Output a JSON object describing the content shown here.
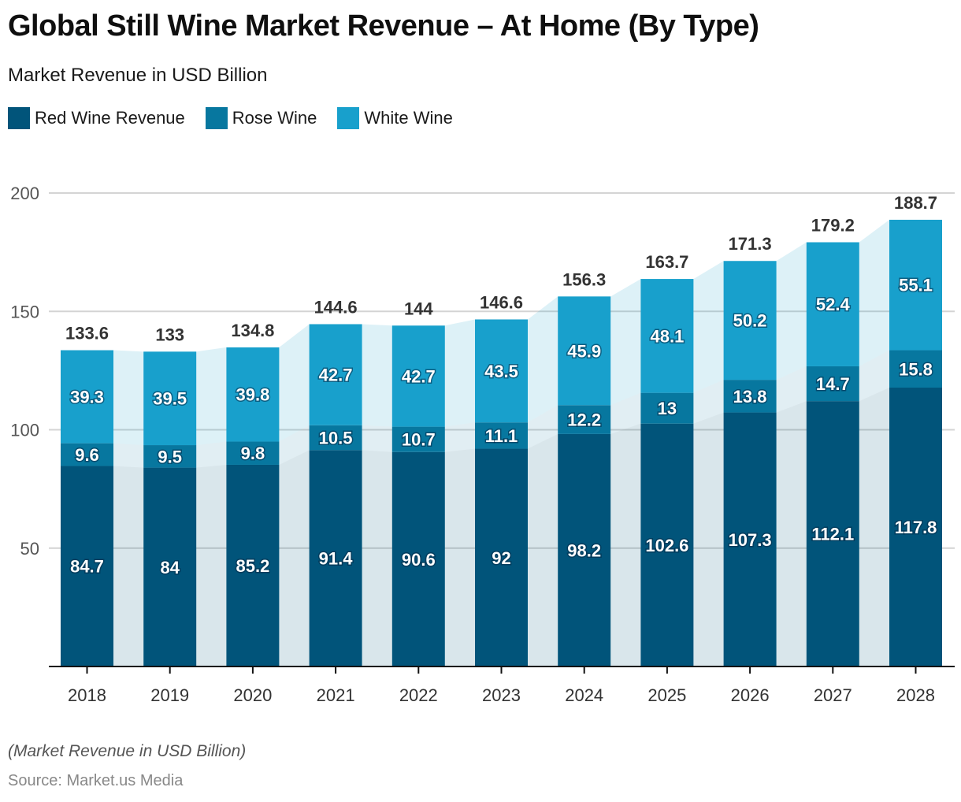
{
  "header": {
    "title": "Global Still Wine Market Revenue – At Home (By Type)",
    "subtitle": "Market Revenue in USD Billion"
  },
  "legend": [
    {
      "label": "Red Wine Revenue",
      "color": "#01547a"
    },
    {
      "label": "Rose Wine",
      "color": "#07779f"
    },
    {
      "label": "White Wine",
      "color": "#18a0cc"
    }
  ],
  "footer": {
    "note": "(Market Revenue in USD Billion)",
    "source": "Source: Market.us Media"
  },
  "chart_data": {
    "type": "bar",
    "stacked": true,
    "title": "Global Still Wine Market Revenue – At Home (By Type)",
    "subtitle": "Market Revenue in USD Billion",
    "xlabel": "",
    "ylabel": "",
    "categories": [
      "2018",
      "2019",
      "2020",
      "2021",
      "2022",
      "2023",
      "2024",
      "2025",
      "2026",
      "2027",
      "2028"
    ],
    "series": [
      {
        "name": "Red Wine Revenue",
        "color": "#01547a",
        "values": [
          84.7,
          84,
          85.2,
          91.4,
          90.6,
          92,
          98.2,
          102.6,
          107.3,
          112.1,
          117.8
        ]
      },
      {
        "name": "Rose Wine",
        "color": "#07779f",
        "values": [
          9.6,
          9.5,
          9.8,
          10.5,
          10.7,
          11.1,
          12.2,
          13,
          13.8,
          14.7,
          15.8
        ]
      },
      {
        "name": "White Wine",
        "color": "#18a0cc",
        "values": [
          39.3,
          39.5,
          39.8,
          42.7,
          42.7,
          43.5,
          45.9,
          48.1,
          50.2,
          52.4,
          55.1
        ]
      }
    ],
    "totals": [
      133.6,
      133,
      134.8,
      144.6,
      144,
      146.6,
      156.3,
      163.7,
      171.3,
      179.2,
      188.7
    ],
    "yticks": [
      50,
      100,
      150,
      200
    ],
    "ylim": [
      0,
      200
    ],
    "grid": true,
    "legend_position": "top-left"
  }
}
